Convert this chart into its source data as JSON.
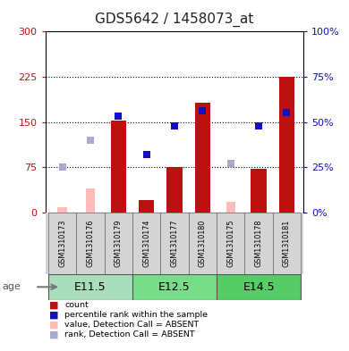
{
  "title": "GDS5642 / 1458073_at",
  "samples": [
    "GSM1310173",
    "GSM1310176",
    "GSM1310179",
    "GSM1310174",
    "GSM1310177",
    "GSM1310180",
    "GSM1310175",
    "GSM1310178",
    "GSM1310181"
  ],
  "age_groups": [
    {
      "label": "E11.5",
      "start": 0,
      "end": 3
    },
    {
      "label": "E12.5",
      "start": 3,
      "end": 6
    },
    {
      "label": "E14.5",
      "start": 6,
      "end": 9
    }
  ],
  "red_bars": [
    null,
    null,
    152,
    20,
    75,
    182,
    null,
    72,
    225
  ],
  "pink_bars": [
    8,
    40,
    null,
    null,
    null,
    null,
    18,
    null,
    null
  ],
  "blue_squares_pct": [
    null,
    null,
    53,
    32,
    48,
    56,
    null,
    48,
    55
  ],
  "lavender_squares_pct": [
    25,
    40,
    null,
    null,
    null,
    null,
    27,
    null,
    null
  ],
  "ylim_left": [
    0,
    300
  ],
  "ylim_right": [
    0,
    100
  ],
  "yticks_left": [
    0,
    75,
    150,
    225,
    300
  ],
  "yticks_right": [
    0,
    25,
    50,
    75,
    100
  ],
  "ytick_labels_left": [
    "0",
    "75",
    "150",
    "225",
    "300"
  ],
  "ytick_labels_right": [
    "0%",
    "25%",
    "50%",
    "75%",
    "100%"
  ],
  "red_color": "#bb1111",
  "pink_color": "#ffbbbb",
  "blue_color": "#1111bb",
  "lavender_color": "#aaaacc",
  "bar_width": 0.55,
  "dotted_lines": [
    75,
    150,
    225
  ],
  "age_colors": [
    "#aaddbb",
    "#77dd88",
    "#55cc66"
  ],
  "sample_bg": "#d4d4d4",
  "title_fontsize": 11
}
